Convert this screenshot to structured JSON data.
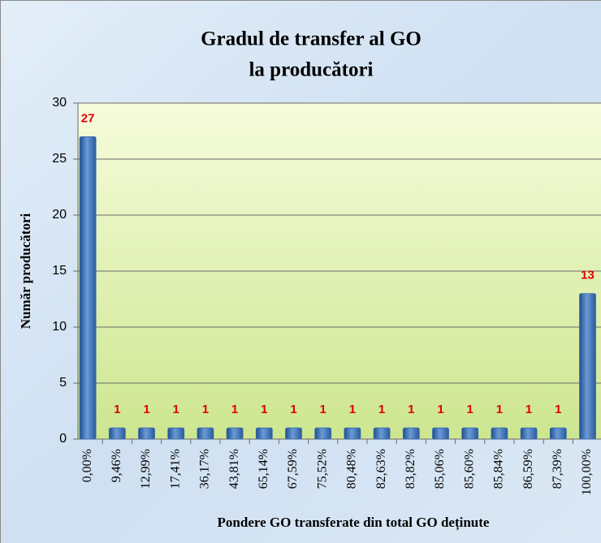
{
  "chart_data": {
    "type": "bar",
    "title": [
      "Gradul de transfer al GO",
      "la producători"
    ],
    "y_label": "Număr producători",
    "x_label": "Pondere GO transferate din total GO deținute",
    "categories": [
      "0,00%",
      "9,46%",
      "12,99%",
      "17,41%",
      "36,17%",
      "43,81%",
      "65,14%",
      "67,59%",
      "75,52%",
      "80,48%",
      "82,63%",
      "83,82%",
      "85,06%",
      "85,60%",
      "85,84%",
      "86,59%",
      "87,39%",
      "100,00%"
    ],
    "values": [
      27,
      1,
      1,
      1,
      1,
      1,
      1,
      1,
      1,
      1,
      1,
      1,
      1,
      1,
      1,
      1,
      1,
      13
    ],
    "color": "#3a6db0",
    "value_label_color": "#e00000",
    "ylim": [
      0,
      30
    ],
    "yticks": [
      0,
      5,
      10,
      15,
      20,
      25,
      30
    ],
    "grid": true
  }
}
